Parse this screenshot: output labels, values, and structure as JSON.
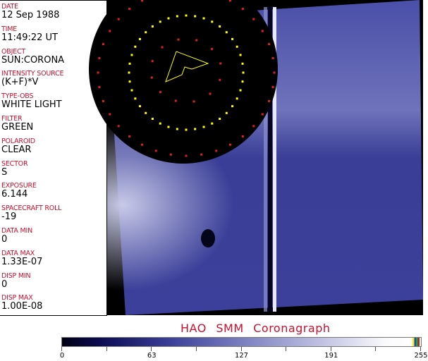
{
  "info": [
    {
      "label": "DATE",
      "value": "12 Sep 1988"
    },
    {
      "label": "TIME",
      "value": "11:49:22 UT"
    },
    {
      "label": "OBJECT",
      "value": "SUN:CORONA"
    },
    {
      "label": "INTENSITY SOURCE",
      "value": "(K+F)*V"
    },
    {
      "label": "TYPE-OBS",
      "value": "WHITE LIGHT"
    },
    {
      "label": "FILTER",
      "value": "GREEN"
    },
    {
      "label": "POLAROID",
      "value": "CLEAR"
    },
    {
      "label": "SECTOR",
      "value": "S"
    },
    {
      "label": "EXPOSURE",
      "value": "6.144"
    },
    {
      "label": "SPACECRAFT ROLL",
      "value": "-19"
    },
    {
      "label": "DATA MIN",
      "value": "0"
    },
    {
      "label": "DATA MAX",
      "value": "1.33E-07"
    },
    {
      "label": "DISP MIN",
      "value": "0"
    },
    {
      "label": "DISP MAX",
      "value": "1.00E-08"
    }
  ],
  "title": "HAO  SMM  Coronagraph",
  "colorbar": {
    "ticks": [
      "0",
      "63",
      "127",
      "191",
      "255"
    ],
    "range": [
      0,
      255
    ]
  },
  "colors": {
    "label": "#c8102e",
    "overlay_yellow": "#ffff00",
    "overlay_red": "#e02020",
    "image_blue": "#4044a0"
  }
}
